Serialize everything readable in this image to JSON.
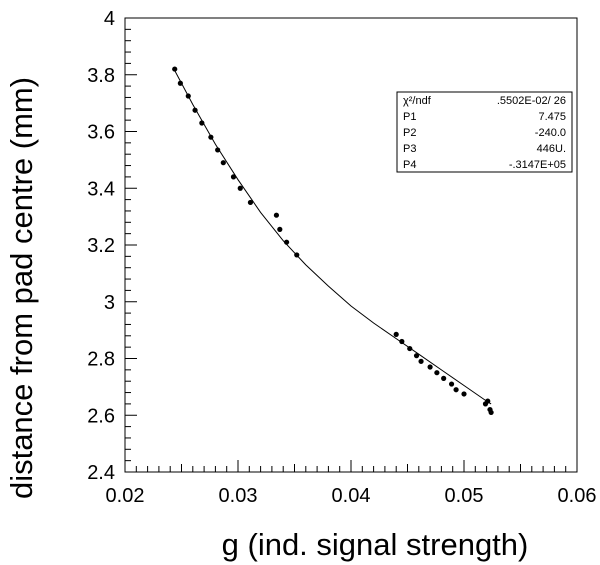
{
  "chart_data": {
    "type": "scatter",
    "xlabel": "g (ind. signal strength)",
    "ylabel": "distance from pad centre (mm)",
    "xlim": [
      0.02,
      0.06
    ],
    "ylim": [
      2.4,
      4.0
    ],
    "x_ticks": [
      "0.02",
      "0.03",
      "0.04",
      "0.05",
      "0.06"
    ],
    "y_ticks": [
      "2.4",
      "2.6",
      "2.8",
      "3",
      "3.2",
      "3.4",
      "3.6",
      "3.8",
      "4"
    ],
    "grid": false,
    "series": [
      {
        "points": [
          [
            0.0244,
            3.82
          ],
          [
            0.0249,
            3.77
          ],
          [
            0.0256,
            3.725
          ],
          [
            0.0262,
            3.675
          ],
          [
            0.0268,
            3.63
          ],
          [
            0.0276,
            3.58
          ],
          [
            0.0282,
            3.535
          ],
          [
            0.0287,
            3.49
          ],
          [
            0.0296,
            3.44
          ],
          [
            0.0302,
            3.4
          ],
          [
            0.0311,
            3.35
          ],
          [
            0.0334,
            3.305
          ],
          [
            0.0337,
            3.255
          ],
          [
            0.0343,
            3.21
          ],
          [
            0.0352,
            3.165
          ],
          [
            0.044,
            2.885
          ],
          [
            0.0445,
            2.86
          ],
          [
            0.0452,
            2.835
          ],
          [
            0.0458,
            2.81
          ],
          [
            0.0462,
            2.79
          ],
          [
            0.047,
            2.77
          ],
          [
            0.0476,
            2.75
          ],
          [
            0.0482,
            2.73
          ],
          [
            0.0489,
            2.71
          ],
          [
            0.0493,
            2.69
          ],
          [
            0.05,
            2.675
          ],
          [
            0.0519,
            2.64
          ],
          [
            0.0521,
            2.65
          ],
          [
            0.0523,
            2.62
          ],
          [
            0.0524,
            2.61
          ]
        ]
      }
    ],
    "fit_curve": [
      [
        0.0244,
        3.815
      ],
      [
        0.026,
        3.695
      ],
      [
        0.028,
        3.555
      ],
      [
        0.03,
        3.43
      ],
      [
        0.032,
        3.315
      ],
      [
        0.034,
        3.215
      ],
      [
        0.036,
        3.13
      ],
      [
        0.038,
        3.055
      ],
      [
        0.04,
        2.985
      ],
      [
        0.042,
        2.925
      ],
      [
        0.044,
        2.87
      ],
      [
        0.046,
        2.815
      ],
      [
        0.048,
        2.76
      ],
      [
        0.05,
        2.705
      ],
      [
        0.052,
        2.65
      ],
      [
        0.0524,
        2.64
      ]
    ],
    "stats_box": {
      "rows": [
        [
          "χ²/ndf",
          ".5502E-02/    26"
        ],
        [
          "P1",
          "7.475"
        ],
        [
          "P2",
          "-240.0"
        ],
        [
          "P3",
          "446U."
        ],
        [
          "P4",
          "-.3147E+05"
        ]
      ]
    }
  }
}
